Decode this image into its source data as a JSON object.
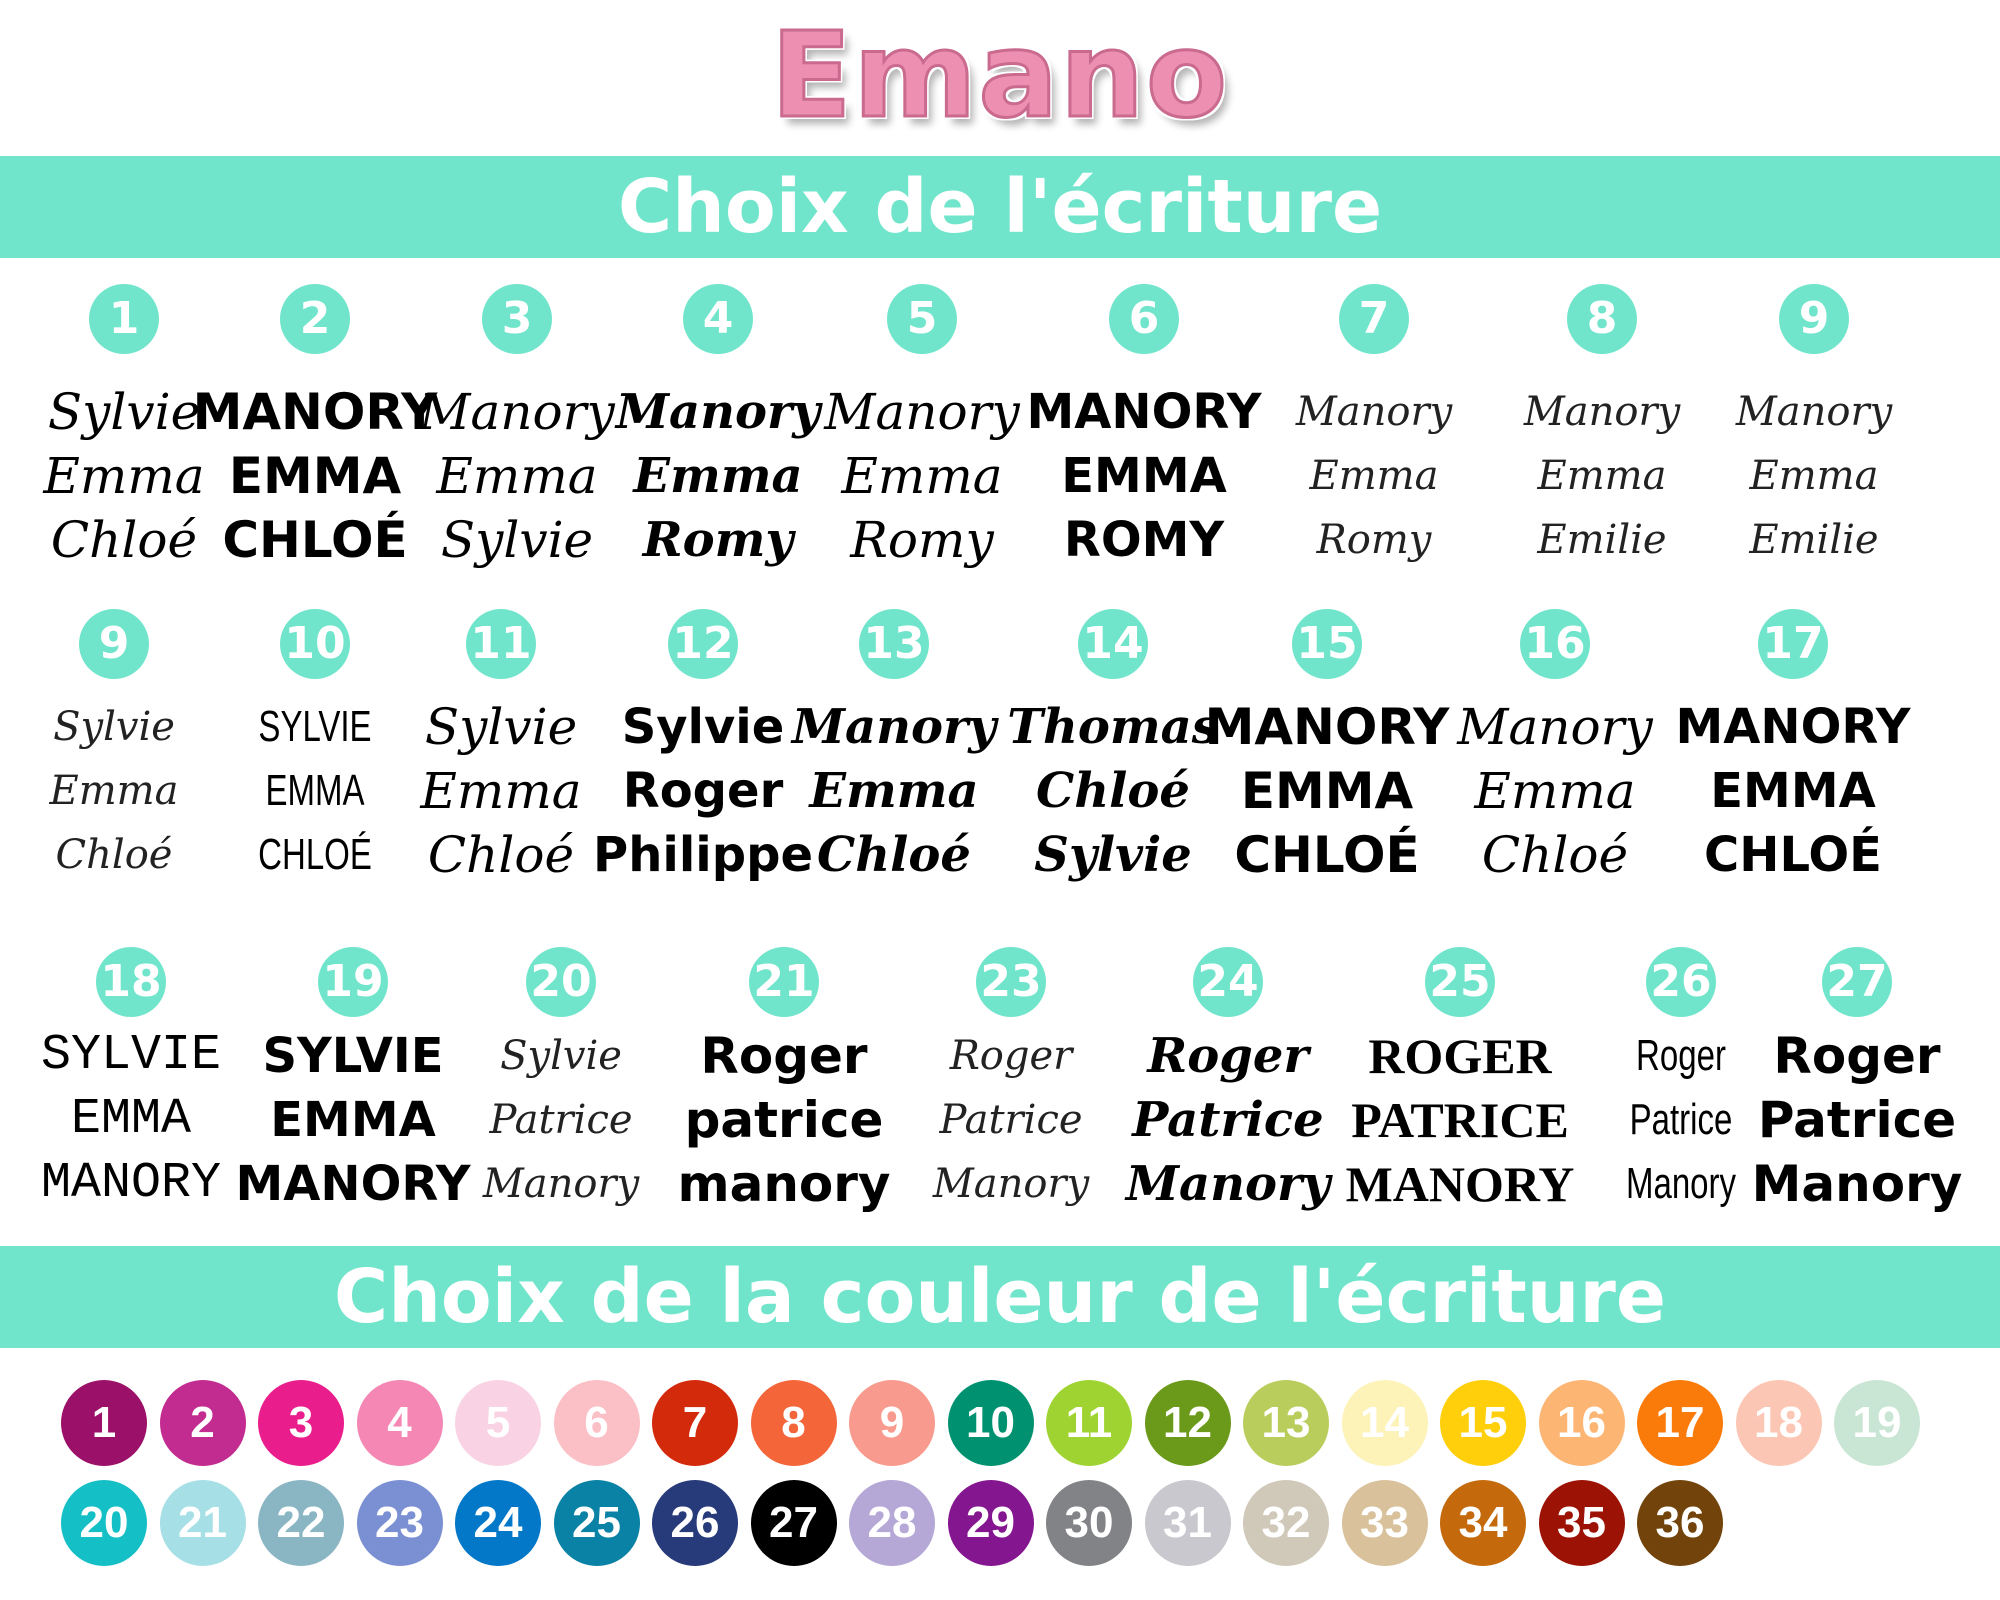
{
  "logo": {
    "text": "Emano",
    "color": "#ec8fb0"
  },
  "section1": {
    "title": "Choix de l'écriture"
  },
  "section2": {
    "title": "Choix de la couleur de l'écriture"
  },
  "accent_color": "#70e5cb",
  "fonts": [
    {
      "number": "1",
      "lines": [
        "Sylvie",
        "Emma",
        "Chloé"
      ]
    },
    {
      "number": "2",
      "lines": [
        "MANORY",
        "EMMA",
        "CHLOÉ"
      ]
    },
    {
      "number": "3",
      "lines": [
        "Manory",
        "Emma",
        "Sylvie"
      ]
    },
    {
      "number": "4",
      "lines": [
        "Manory",
        "Emma",
        "Romy"
      ]
    },
    {
      "number": "5",
      "lines": [
        "Manory",
        "Emma",
        "Romy"
      ]
    },
    {
      "number": "6",
      "lines": [
        "MANORY",
        "EMMA",
        "ROMY"
      ]
    },
    {
      "number": "7",
      "lines": [
        "Manory",
        "Emma",
        "Romy"
      ]
    },
    {
      "number": "8",
      "lines": [
        "Manory",
        "Emma",
        "Emilie"
      ]
    },
    {
      "number": "9",
      "lines": [
        "Manory",
        "Emma",
        "Emilie"
      ]
    },
    {
      "number": "9",
      "lines": [
        "Sylvie",
        "Emma",
        "Chloé"
      ]
    },
    {
      "number": "10",
      "lines": [
        "SYLVIE",
        "EMMA",
        "CHLOÉ"
      ]
    },
    {
      "number": "11",
      "lines": [
        "Sylvie",
        "Emma",
        "Chloé"
      ]
    },
    {
      "number": "12",
      "lines": [
        "Sylvie",
        "Roger",
        "Philippe"
      ]
    },
    {
      "number": "13",
      "lines": [
        "Manory",
        "Emma",
        "Chloé"
      ]
    },
    {
      "number": "14",
      "lines": [
        "Thomas",
        "Chloé",
        "Sylvie"
      ]
    },
    {
      "number": "15",
      "lines": [
        "MANORY",
        "EMMA",
        "CHLOÉ"
      ]
    },
    {
      "number": "16",
      "lines": [
        "Manory",
        "Emma",
        "Chloé"
      ]
    },
    {
      "number": "17",
      "lines": [
        "MANORY",
        "EMMA",
        "CHLOÉ"
      ]
    },
    {
      "number": "18",
      "lines": [
        "SYLVIE",
        "EMMA",
        "MANORY"
      ]
    },
    {
      "number": "19",
      "lines": [
        "SYLVIE",
        "EMMA",
        "MANORY"
      ]
    },
    {
      "number": "20",
      "lines": [
        "Sylvie",
        "Patrice",
        "Manory"
      ]
    },
    {
      "number": "21",
      "lines": [
        "Roger",
        "patrice",
        "manory"
      ]
    },
    {
      "number": "23",
      "lines": [
        "Roger",
        "Patrice",
        "Manory"
      ]
    },
    {
      "number": "24",
      "lines": [
        "Roger",
        "Patrice",
        "Manory"
      ]
    },
    {
      "number": "25",
      "lines": [
        "ROGER",
        "PATRICE",
        "MANORY"
      ]
    },
    {
      "number": "26",
      "lines": [
        "Roger",
        "Patrice",
        "Manory"
      ]
    },
    {
      "number": "27",
      "lines": [
        "Roger",
        "Patrice",
        "Manory"
      ]
    }
  ],
  "colors": [
    {
      "number": "1",
      "hex": "#9b1069"
    },
    {
      "number": "2",
      "hex": "#c22b8f"
    },
    {
      "number": "3",
      "hex": "#e91e8c"
    },
    {
      "number": "4",
      "hex": "#f487b3"
    },
    {
      "number": "5",
      "hex": "#f9d3e3"
    },
    {
      "number": "6",
      "hex": "#fbbfc6"
    },
    {
      "number": "7",
      "hex": "#d42a0c"
    },
    {
      "number": "8",
      "hex": "#f4653a"
    },
    {
      "number": "9",
      "hex": "#f89b8e"
    },
    {
      "number": "10",
      "hex": "#009170"
    },
    {
      "number": "11",
      "hex": "#9fd332"
    },
    {
      "number": "12",
      "hex": "#6b9a1a"
    },
    {
      "number": "13",
      "hex": "#b9cd5c"
    },
    {
      "number": "14",
      "hex": "#fdf3b8"
    },
    {
      "number": "15",
      "hex": "#fecf0a"
    },
    {
      "number": "16",
      "hex": "#fdb574"
    },
    {
      "number": "17",
      "hex": "#fb7b0a"
    },
    {
      "number": "18",
      "hex": "#fbc6b3"
    },
    {
      "number": "19",
      "hex": "#c9e6d4"
    },
    {
      "number": "20",
      "hex": "#14c0c6"
    },
    {
      "number": "21",
      "hex": "#a6dfe5"
    },
    {
      "number": "22",
      "hex": "#8ab6c4"
    },
    {
      "number": "23",
      "hex": "#7b90d2"
    },
    {
      "number": "24",
      "hex": "#0478c8"
    },
    {
      "number": "25",
      "hex": "#0a82a6"
    },
    {
      "number": "26",
      "hex": "#273a7a"
    },
    {
      "number": "27",
      "hex": "#000000"
    },
    {
      "number": "28",
      "hex": "#b5a7d6"
    },
    {
      "number": "29",
      "hex": "#84168f"
    },
    {
      "number": "30",
      "hex": "#828386"
    },
    {
      "number": "31",
      "hex": "#c8c8ce"
    },
    {
      "number": "32",
      "hex": "#d0c8b8"
    },
    {
      "number": "33",
      "hex": "#d9c19b"
    },
    {
      "number": "34",
      "hex": "#c46a0c"
    },
    {
      "number": "35",
      "hex": "#9c1306"
    },
    {
      "number": "36",
      "hex": "#72440c"
    }
  ]
}
